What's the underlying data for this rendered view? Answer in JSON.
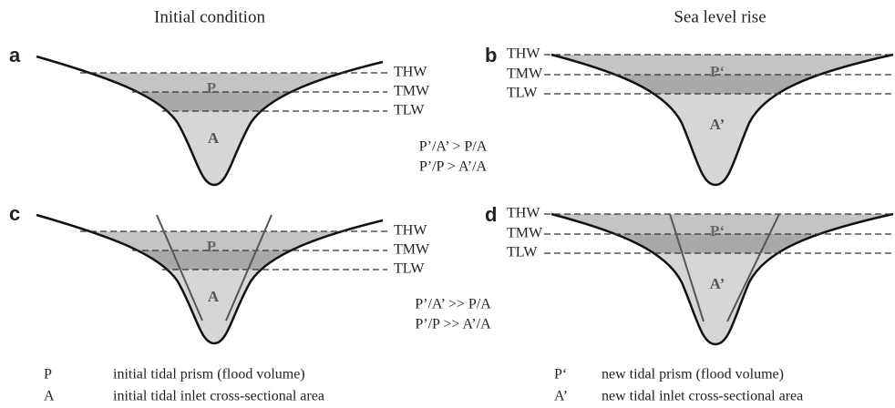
{
  "titles": [
    "Initial condition",
    "Sea level rise"
  ],
  "panels": [
    {
      "letter": "a",
      "levels": [
        "THW",
        "TMW",
        "TLW"
      ],
      "prism": "P",
      "area": "A"
    },
    {
      "letter": "b",
      "levels": [
        "THW",
        "TMW",
        "TLW"
      ],
      "prism": "P‘",
      "area": "A’"
    },
    {
      "letter": "c",
      "levels": [
        "THW",
        "TMW",
        "TLW"
      ],
      "prism": "P",
      "area": "A"
    },
    {
      "letter": "d",
      "levels": [
        "THW",
        "TMW",
        "TLW"
      ],
      "prism": "P‘",
      "area": "A’"
    }
  ],
  "relations": [
    [
      "P’/A’ > P/A",
      "P’/P > A’/A"
    ],
    [
      "P’/A’ >> P/A",
      "P’/P >> A’/A"
    ]
  ],
  "legend": [
    {
      "symbol": "P",
      "text": "initial tidal prism (flood volume)"
    },
    {
      "symbol": "A",
      "text": "initial tidal inlet cross-sectional area"
    },
    {
      "symbol": "P‘",
      "text": "new tidal prism (flood volume)"
    },
    {
      "symbol": "A’",
      "text": "new tidal inlet cross-sectional area"
    }
  ]
}
